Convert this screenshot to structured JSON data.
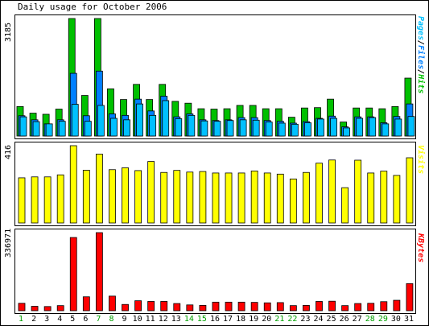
{
  "title": "Daily usage for October 2006",
  "colors": {
    "hits": "#00c000",
    "files": "#0080ff",
    "pages": "#00c0ff",
    "visits": "#ffff00",
    "kbytes": "#ff0000",
    "weekday": "#000000",
    "weekend": "#00a000"
  },
  "panels": {
    "top": {
      "ymax_label": "3185",
      "side_label": {
        "pages": "Pages",
        "sep1": "/",
        "files": "Files",
        "sep2": "/",
        "hits": "Hits"
      }
    },
    "middle": {
      "ymax_label": "416",
      "side_label": "Visits"
    },
    "bottom": {
      "ymax_label": "336971",
      "side_label": "KBytes"
    }
  },
  "chart_data": {
    "type": "bar",
    "title": "Daily usage for October 2006",
    "categories": [
      "1",
      "2",
      "3",
      "4",
      "5",
      "6",
      "7",
      "8",
      "9",
      "10",
      "11",
      "12",
      "13",
      "14",
      "15",
      "16",
      "17",
      "18",
      "19",
      "20",
      "21",
      "22",
      "23",
      "24",
      "25",
      "26",
      "27",
      "28",
      "29",
      "30",
      "31"
    ],
    "weekend_days": [
      "1",
      "7",
      "8",
      "14",
      "15",
      "21",
      "22",
      "28",
      "29"
    ],
    "panels": [
      {
        "name": "hits-files-pages",
        "ymax": 3185,
        "series": [
          {
            "name": "Hits",
            "values": [
              800,
              620,
              590,
              730,
              3185,
              1100,
              3185,
              1280,
              990,
              1400,
              990,
              1400,
              940,
              890,
              740,
              730,
              740,
              830,
              830,
              740,
              740,
              510,
              760,
              770,
              1000,
              380,
              760,
              760,
              740,
              800,
              1570
            ]
          },
          {
            "name": "Files",
            "values": [
              550,
              440,
              330,
              440,
              1700,
              550,
              1760,
              600,
              560,
              1000,
              680,
              1080,
              520,
              600,
              440,
              420,
              440,
              500,
              500,
              420,
              400,
              350,
              390,
              480,
              540,
              250,
              520,
              520,
              360,
              530,
              870
            ]
          },
          {
            "name": "Pages",
            "values": [
              520,
              390,
              330,
              400,
              860,
              400,
              830,
              480,
              440,
              870,
              560,
              960,
              470,
              560,
              410,
              400,
              420,
              440,
              430,
              380,
              350,
              320,
              360,
              460,
              480,
              220,
              480,
              500,
              330,
              460,
              530
            ]
          }
        ]
      },
      {
        "name": "visits",
        "ymax": 416,
        "series": [
          {
            "name": "Visits",
            "values": [
              243,
              248,
              248,
              259,
              416,
              284,
              371,
              287,
              297,
              282,
              331,
              272,
              283,
              274,
              277,
              269,
              269,
              269,
              280,
              269,
              263,
              237,
              272,
              322,
              339,
              190,
              338,
              269,
              279,
              256,
              351
            ]
          }
        ]
      },
      {
        "name": "kbytes",
        "ymax": 336971,
        "series": [
          {
            "name": "KBytes",
            "values": [
              32000,
              19000,
              18000,
              22000,
              316000,
              60000,
              336971,
              63000,
              27000,
              43000,
              40000,
              40000,
              31000,
              25000,
              23000,
              37000,
              37000,
              37000,
              36000,
              34000,
              35000,
              22000,
              23000,
              40000,
              41000,
              22000,
              31000,
              32000,
              39000,
              45000,
              117000
            ]
          }
        ]
      }
    ]
  }
}
